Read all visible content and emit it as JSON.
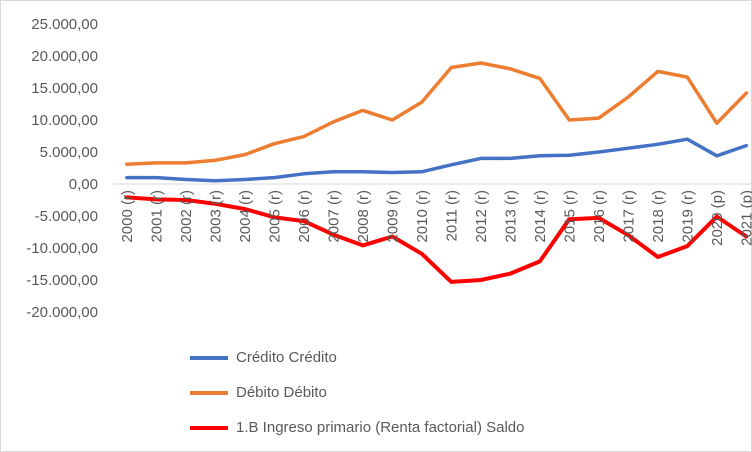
{
  "chart_data": {
    "type": "line",
    "categories": [
      "2000 (r)",
      "2001 (r)",
      "2002 (r)",
      "2003 (r)",
      "2004 (r)",
      "2005 (r)",
      "2006 (r)",
      "2007 (r)",
      "2008 (r)",
      "2009 (r)",
      "2010 (r)",
      "2011 (r)",
      "2012 (r)",
      "2013 (r)",
      "2014 (r)",
      "2015 (r)",
      "2016 (r)",
      "2017 (r)",
      "2018 (r)",
      "2019 (r)",
      "2020 (p)",
      "2021 (p)"
    ],
    "series": [
      {
        "name": "Crédito Crédito",
        "color": "#4472c4",
        "values": [
          1000,
          1000,
          700,
          500,
          700,
          1000,
          1600,
          1900,
          1900,
          1800,
          1900,
          3000,
          4000,
          4000,
          4400,
          4500,
          5000,
          5600,
          6200,
          7000,
          4400,
          6000
        ]
      },
      {
        "name": "Débito Débito",
        "color": "#ed7d31",
        "values": [
          3100,
          3300,
          3300,
          3700,
          4600,
          6300,
          7400,
          9700,
          11500,
          10000,
          12800,
          18200,
          18900,
          18000,
          16500,
          10000,
          10300,
          13600,
          17600,
          16700,
          9500,
          14200
        ]
      },
      {
        "name": "1.B Ingreso primario (Renta factorial) Saldo",
        "color": "#ff0000",
        "values": [
          -2100,
          -2400,
          -2500,
          -3100,
          -3900,
          -5200,
          -5800,
          -7900,
          -9600,
          -8200,
          -10900,
          -15300,
          -15000,
          -14000,
          -12100,
          -5500,
          -5300,
          -8000,
          -11400,
          -9700,
          -5100,
          -8200
        ]
      }
    ],
    "y_ticks": [
      "25.000,00",
      "20.000,00",
      "15.000,00",
      "10.000,00",
      "5.000,00",
      "0,00",
      "-5.000,00",
      "-10.000,00",
      "-15.000,00",
      "-20.000,00"
    ],
    "ylim": [
      -20000,
      25000
    ],
    "title": "",
    "xlabel": "",
    "ylabel": "",
    "grid": false,
    "legend_position": "bottom"
  }
}
